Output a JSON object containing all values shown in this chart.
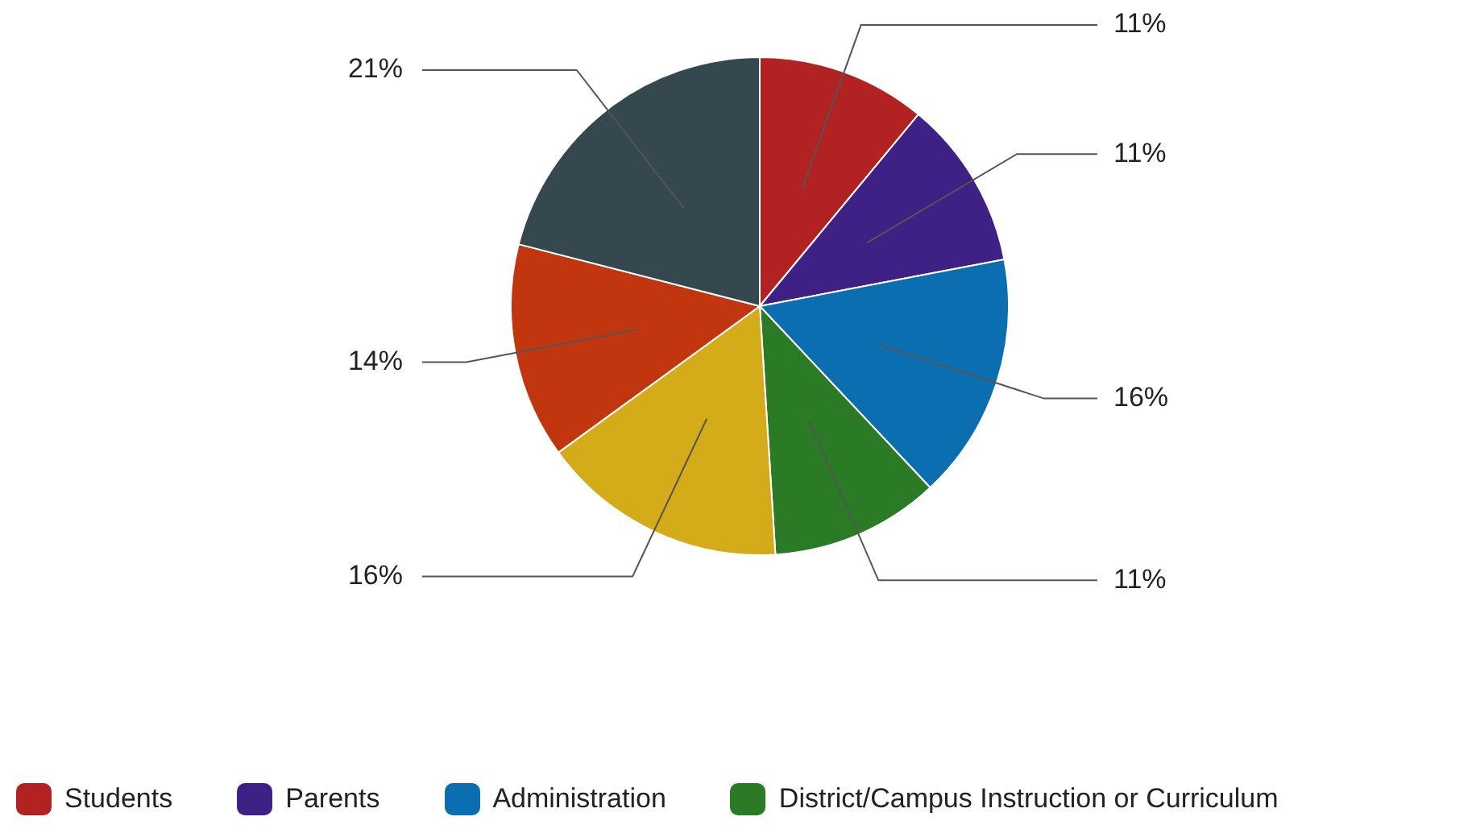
{
  "chart_data": {
    "type": "pie",
    "categories": [
      "Students",
      "Parents",
      "Administration",
      "District/Campus Instruction or Curriculum",
      null,
      null,
      null
    ],
    "values": [
      11,
      11,
      16,
      11,
      16,
      14,
      21
    ],
    "value_labels": [
      "11%",
      "11%",
      "16%",
      "11%",
      "16%",
      "14%",
      "21%"
    ],
    "colors": [
      "#b22222",
      "#3f2185",
      "#0a6eb0",
      "#2a7a26",
      "#d4ac1a",
      "#c2360f",
      "#35474f"
    ],
    "legend": "bottom"
  }
}
